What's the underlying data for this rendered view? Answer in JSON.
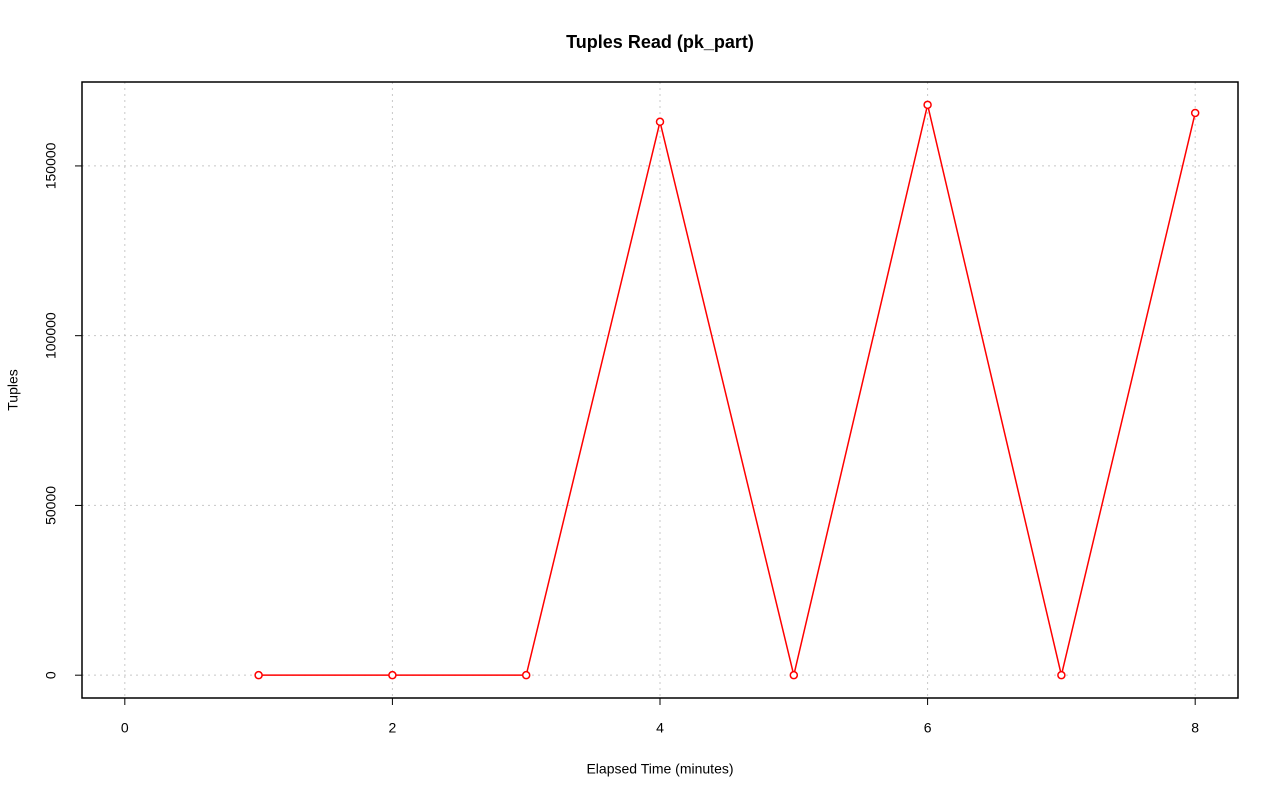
{
  "chart_data": {
    "type": "line",
    "title": "Tuples Read (pk_part)",
    "x_label": "Elapsed Time (minutes)",
    "y_label": "Tuples",
    "x": [
      1,
      2,
      3,
      4,
      5,
      6,
      7,
      8
    ],
    "series": [
      {
        "name": "pk_part",
        "color": "#ff0000",
        "values": [
          0,
          0,
          0,
          163000,
          0,
          168000,
          0,
          165600
        ]
      }
    ],
    "xlim": [
      -0.32,
      8.32
    ],
    "xticks": [
      0,
      2,
      4,
      6,
      8
    ],
    "ylim": [
      -6720,
      174720
    ],
    "yticks": [
      0,
      50000,
      100000,
      150000
    ],
    "grid": true
  }
}
